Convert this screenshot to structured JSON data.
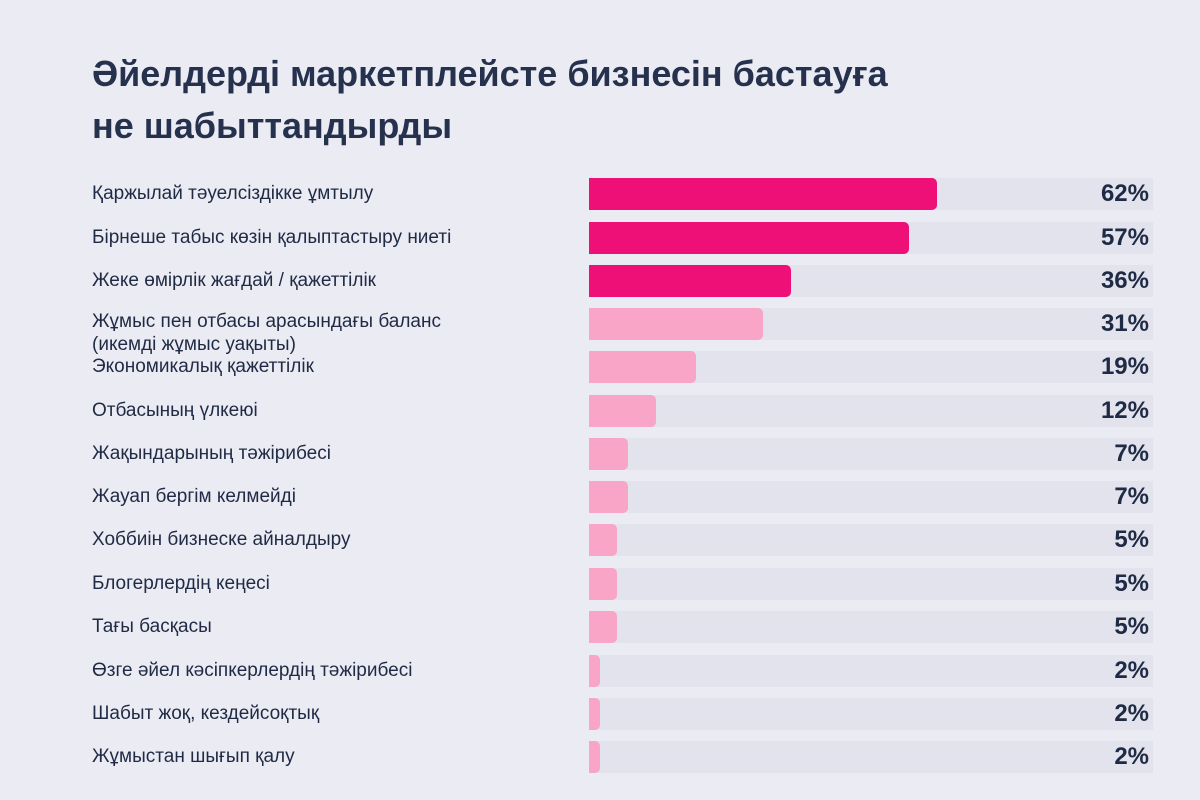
{
  "title_lines": [
    "Әйелдерді маркетплейсте бизнесін бастауға",
    "не шабыттандырды"
  ],
  "colors": {
    "bar_strong": "#ef1077",
    "bar_light": "#f8a5c8",
    "track": "#e2e3ec"
  },
  "chart_data": {
    "type": "bar",
    "orientation": "horizontal",
    "title": "Әйелдерді маркетплейсте бизнесін бастауға не шабыттандырды",
    "xlim": [
      0,
      100
    ],
    "unit": "%",
    "categories": [
      "Қаржылай тәуелсіздікке ұмтылу",
      "Бірнеше табыс көзін қалыптастыру ниеті",
      "Жеке өмірлік жағдай / қажеттілік",
      "Жұмыс пен отбасы арасындағы баланс\n(икемді жұмыс уақыты)",
      "Экономикалық қажеттілік",
      "Отбасының үлкеюі",
      "Жақындарының тәжірибесі",
      "Жауап бергім келмейді",
      "Хоббиін бизнеске айналдыру",
      "Блогерлердің кеңесі",
      "Тағы басқасы",
      "Өзге әйел кәсіпкерлердің тәжірибесі",
      "Шабыт жоқ, кездейсоқтық",
      "Жұмыстан шығып қалу"
    ],
    "values": [
      62,
      57,
      36,
      31,
      19,
      12,
      7,
      7,
      5,
      5,
      5,
      2,
      2,
      2
    ],
    "value_labels": [
      "62%",
      "57%",
      "36%",
      "31%",
      "19%",
      "12%",
      "7%",
      "7%",
      "5%",
      "5%",
      "5%",
      "2%",
      "2%",
      "2%"
    ],
    "highlighted_count": 3
  }
}
